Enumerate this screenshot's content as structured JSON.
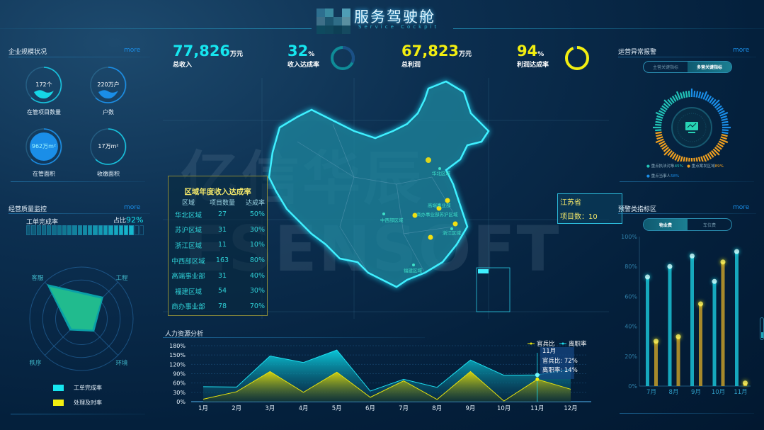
{
  "header": {
    "title": "服务驾驶舱",
    "subtitle": "Service Cockpit"
  },
  "watermark": {
    "line1": "亿信华辰",
    "line2": "ESENSOFT"
  },
  "colors": {
    "cyan": "#16e6ef",
    "yellow": "#f2ee10",
    "blue": "#1a8ee8",
    "orange": "#f0a020",
    "teal": "#22c4b8"
  },
  "kpis": [
    {
      "value": "77,826",
      "unit": "万元",
      "label": "总收入",
      "color": "#16e6ef"
    },
    {
      "value": "32",
      "unit": "%",
      "label": "收入达成率",
      "color": "#16e6ef",
      "percent": 32
    },
    {
      "value": "67,823",
      "unit": "万元",
      "label": "总利润",
      "color": "#f2ee10"
    },
    {
      "value": "94",
      "unit": "%",
      "label": "利润达成率",
      "color": "#f2ee10",
      "percent": 94
    }
  ],
  "scale": {
    "title": "企业规模状况",
    "more": "more",
    "gauges": [
      {
        "value": "172个",
        "label": "在管项目数量"
      },
      {
        "value": "220万户",
        "label": "户数"
      },
      {
        "value": "962万m²",
        "label": "在管面积"
      },
      {
        "value": "17万m²",
        "label": "收缴面积"
      }
    ]
  },
  "quality": {
    "title": "经营质量监控",
    "more": "more",
    "bar_label": "工单完成率",
    "ratio_prefix": "占比",
    "ratio": "92%",
    "ratio_percent": 92,
    "radar": {
      "axes": [
        "客服",
        "工程",
        "环境",
        "秩序"
      ],
      "max": 100,
      "series": [
        {
          "name": "工单完成率",
          "values": [
            95,
            60,
            35,
            32
          ]
        },
        {
          "name": "处理及时率",
          "values": [
            88,
            55,
            30,
            27
          ]
        }
      ]
    },
    "legend": [
      "工单完成率",
      "处理及时率"
    ]
  },
  "region_table": {
    "title": "区域年度收入达成率",
    "headers": [
      "区域",
      "项目数量",
      "达成率"
    ],
    "rows": [
      [
        "华北区域",
        "27",
        "50%"
      ],
      [
        "苏沪区域",
        "31",
        "30%"
      ],
      [
        "浙江区域",
        "11",
        "10%"
      ],
      [
        "中西部区域",
        "163",
        "80%"
      ],
      [
        "高端事业部",
        "31",
        "40%"
      ],
      [
        "福建区域",
        "54",
        "30%"
      ],
      [
        "商办事业部",
        "78",
        "70%"
      ]
    ]
  },
  "map": {
    "labels": [
      "华北区域",
      "高端事业部",
      "商办事业部苏沪区域",
      "中西部区域",
      "浙江区域",
      "福建区域"
    ],
    "tooltip": {
      "province": "江苏省",
      "label": "项目数：",
      "value": "10"
    }
  },
  "hr": {
    "title": "人力资源分析",
    "chart_data": {
      "type": "area",
      "stacked": true,
      "categories": [
        "1月",
        "2月",
        "3月",
        "4月",
        "5月",
        "6月",
        "7月",
        "8月",
        "9月",
        "10月",
        "11月",
        "12月"
      ],
      "yticks": [
        "0%",
        "30%",
        "60%",
        "90%",
        "120%",
        "150%",
        "180%"
      ],
      "ylim": [
        0,
        180
      ],
      "series": [
        {
          "name": "官兵比",
          "values": [
            8,
            32,
            97,
            30,
            95,
            14,
            67,
            7,
            97,
            2,
            72,
            40
          ]
        },
        {
          "name": "离职率",
          "values": [
            40,
            15,
            50,
            96,
            71,
            20,
            5,
            39,
            37,
            83,
            14,
            65
          ]
        }
      ],
      "tooltip": {
        "title": "11月",
        "lines": [
          "官兵比: 72%",
          "离职率: 14%"
        ]
      }
    }
  },
  "alarm": {
    "title": "运营异常报警",
    "more": "more",
    "tabs": [
      "主营关键指标",
      "多营关键指标"
    ],
    "active_tab": 1,
    "legend": [
      {
        "label": "重点执法对象",
        "value": "45%"
      },
      {
        "label": "重点案发区域",
        "value": "89%"
      },
      {
        "label": "重点当事人",
        "value": "58%"
      }
    ]
  },
  "warn": {
    "title": "预警类指标区",
    "more": "more",
    "tabs": [
      "物业费",
      "车位费"
    ],
    "active_tab": 0,
    "chart_data": {
      "type": "bar",
      "categories": [
        "7月",
        "8月",
        "9月",
        "10月",
        "11月"
      ],
      "yticks": [
        "0%",
        "20%",
        "40%",
        "60%",
        "80%",
        "100%"
      ],
      "ylim": [
        0,
        100
      ],
      "series": [
        {
          "values": [
            73,
            80,
            87,
            70,
            90
          ]
        },
        {
          "values": [
            30,
            33,
            55,
            83,
            2
          ]
        }
      ]
    }
  }
}
